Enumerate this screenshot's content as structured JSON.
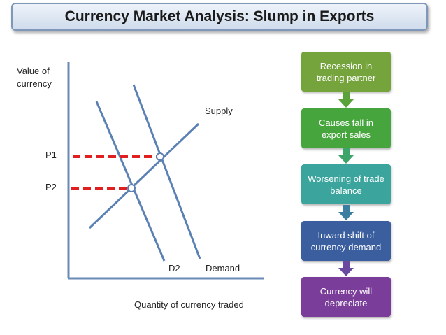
{
  "title": "Currency Market Analysis: Slump in Exports",
  "graph": {
    "y_axis_label": [
      "Value of",
      "currency"
    ],
    "x_axis_label": "Quantity of currency traded",
    "curves": {
      "supply": "Supply",
      "demand": "Demand",
      "d2": "D2"
    },
    "prices": {
      "p1": "P1",
      "p2": "P2"
    }
  },
  "flow": [
    {
      "text": "Recession in trading partner",
      "color": "#76a43c"
    },
    {
      "text": "Causes fall in export sales",
      "color": "#46a63d"
    },
    {
      "text": "Worsening of trade balance",
      "color": "#3aa49d"
    },
    {
      "text": "Inward shift of currency demand",
      "color": "#3b5f9e"
    },
    {
      "text": "Currency will depreciate",
      "color": "#7a3e9a"
    }
  ],
  "colors": {
    "axis": "#6a8ab6",
    "curve": "#5b81b4",
    "dashed": "#e02020",
    "title_border": "#7f97b8"
  }
}
